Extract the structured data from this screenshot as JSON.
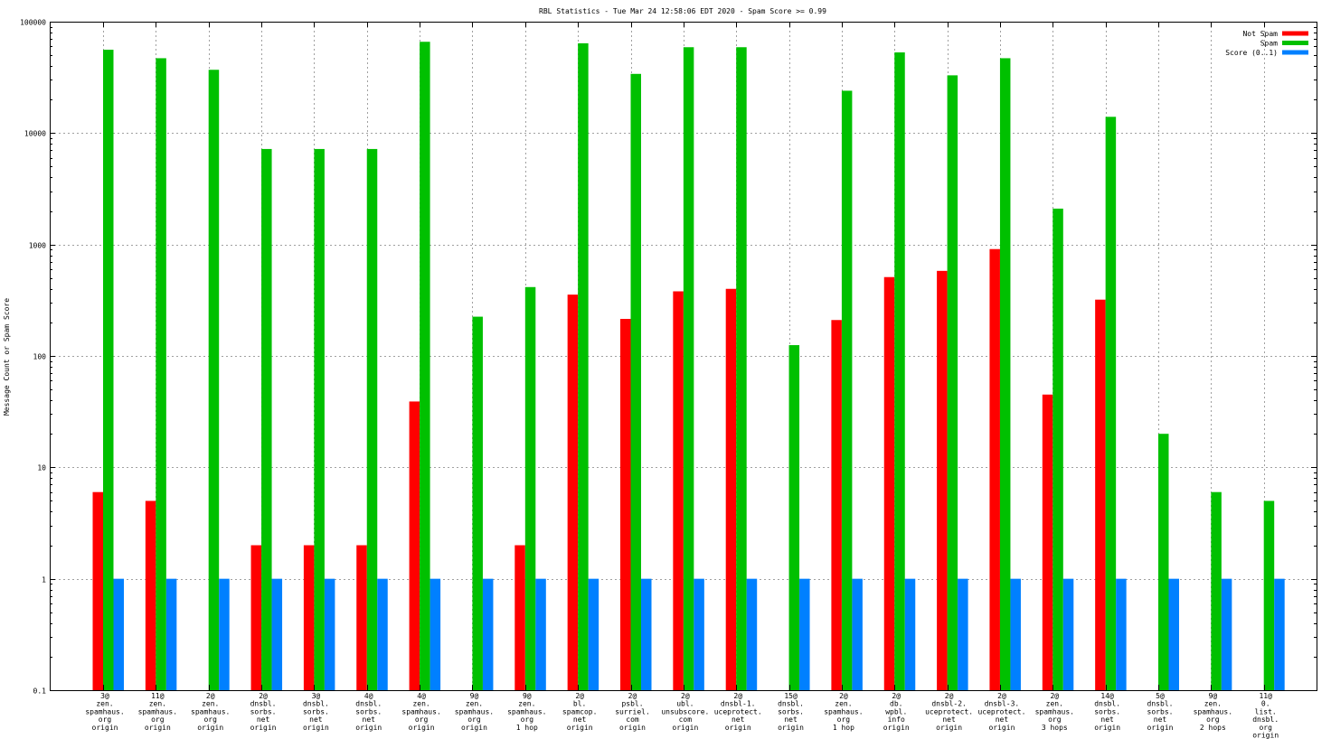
{
  "chart_data": {
    "type": "bar",
    "title": "RBL Statistics - Tue Mar 24 12:58:06 EDT 2020 - Spam Score >= 0.99",
    "ylabel": "Message Count or Spam Score",
    "xlabel": "",
    "yscale": "log",
    "ylim": [
      0.1,
      100000
    ],
    "yticks": [
      "0.1",
      "1",
      "10",
      "100",
      "1000",
      "10000",
      "100000"
    ],
    "grid": true,
    "legend_position": "top-right",
    "categories": [
      [
        "3@",
        "zen.",
        "spamhaus.",
        "org",
        "origin"
      ],
      [
        "11@",
        "zen.",
        "spamhaus.",
        "org",
        "origin"
      ],
      [
        "2@",
        "zen.",
        "spamhaus.",
        "org",
        "origin"
      ],
      [
        "2@",
        "dnsbl.",
        "sorbs.",
        "net",
        "origin"
      ],
      [
        "3@",
        "dnsbl.",
        "sorbs.",
        "net",
        "origin"
      ],
      [
        "4@",
        "dnsbl.",
        "sorbs.",
        "net",
        "origin"
      ],
      [
        "4@",
        "zen.",
        "spamhaus.",
        "org",
        "origin"
      ],
      [
        "9@",
        "zen.",
        "spamhaus.",
        "org",
        "origin"
      ],
      [
        "9@",
        "zen.",
        "spamhaus.",
        "org",
        "1 hop"
      ],
      [
        "2@",
        "bl.",
        "spamcop.",
        "net",
        "origin"
      ],
      [
        "2@",
        "psbl.",
        "surriel.",
        "com",
        "origin"
      ],
      [
        "2@",
        "ubl.",
        "unsubscore.",
        "com",
        "origin"
      ],
      [
        "2@",
        "dnsbl-1.",
        "uceprotect.",
        "net",
        "origin"
      ],
      [
        "15@",
        "dnsbl.",
        "sorbs.",
        "net",
        "origin"
      ],
      [
        "2@",
        "zen.",
        "spamhaus.",
        "org",
        "1 hop"
      ],
      [
        "2@",
        "db.",
        "wpbl.",
        "info",
        "origin"
      ],
      [
        "2@",
        "dnsbl-2.",
        "uceprotect.",
        "net",
        "origin"
      ],
      [
        "2@",
        "dnsbl-3.",
        "uceprotect.",
        "net",
        "origin"
      ],
      [
        "2@",
        "zen.",
        "spamhaus.",
        "org",
        "3 hops"
      ],
      [
        "14@",
        "dnsbl.",
        "sorbs.",
        "net",
        "origin"
      ],
      [
        "5@",
        "dnsbl.",
        "sorbs.",
        "net",
        "origin"
      ],
      [
        "9@",
        "zen.",
        "spamhaus.",
        "org",
        "2 hops"
      ],
      [
        "11@",
        "0.",
        "list.",
        "dnsbl.",
        "org",
        "origin"
      ]
    ],
    "series": [
      {
        "name": "Not Spam",
        "color": "#ff0000",
        "values": [
          6,
          5,
          null,
          2,
          2,
          2,
          39,
          null,
          2,
          355,
          215,
          380,
          400,
          null,
          210,
          510,
          580,
          910,
          45,
          320,
          null,
          null,
          null
        ]
      },
      {
        "name": "Spam",
        "color": "#00c000",
        "values": [
          56000,
          47000,
          37000,
          7200,
          7200,
          7200,
          66000,
          225,
          415,
          64000,
          34000,
          59000,
          59000,
          125,
          24000,
          53000,
          33000,
          47000,
          2100,
          14000,
          20,
          6,
          5
        ]
      },
      {
        "name": "Score (0..1)",
        "color": "#0080ff",
        "values": [
          1,
          1,
          1,
          1,
          1,
          1,
          1,
          1,
          1,
          1,
          1,
          1,
          1,
          1,
          1,
          1,
          1,
          1,
          1,
          1,
          1,
          1,
          1
        ]
      }
    ]
  }
}
